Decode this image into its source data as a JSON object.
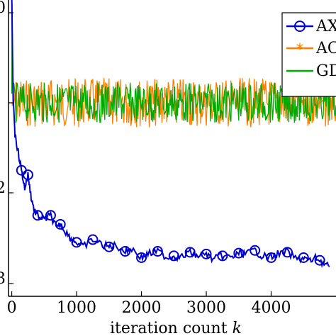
{
  "chart_data": {
    "type": "line",
    "xlabel_text": "iteration count ",
    "xlabel_var": "k",
    "xlim": [
      -50,
      5000
    ],
    "x_ticks": [
      0,
      1000,
      2000,
      3000,
      4000
    ],
    "x_tick_labels": [
      "0",
      "1000",
      "2000",
      "3000",
      "4000"
    ],
    "y_tick_labels_partial": [
      "0",
      "",
      "2",
      "3"
    ],
    "legend_placement": "top-right",
    "grid": false,
    "series": [
      {
        "name": "AX",
        "color": "#0000cc",
        "marker": "circle",
        "x": [
          0,
          20,
          50,
          100,
          150,
          200,
          250,
          300,
          350,
          400,
          500,
          600,
          700,
          750,
          800,
          900,
          1000,
          1100,
          1250,
          1400,
          1500,
          1600,
          1750,
          1850,
          2000,
          2100,
          2250,
          2400,
          2500,
          2600,
          2750,
          2850,
          3000,
          3100,
          3250,
          3400,
          3500,
          3600,
          3750,
          3850,
          4000,
          4100,
          4250,
          4400,
          4500,
          4600,
          4700,
          4800,
          4900
        ],
        "y": [
          -0.2,
          0.9,
          1.35,
          1.55,
          1.75,
          1.95,
          1.8,
          2.05,
          2.2,
          2.25,
          2.3,
          2.25,
          2.4,
          2.35,
          2.4,
          2.5,
          2.55,
          2.6,
          2.52,
          2.58,
          2.6,
          2.58,
          2.65,
          2.62,
          2.72,
          2.68,
          2.65,
          2.72,
          2.7,
          2.72,
          2.66,
          2.7,
          2.68,
          2.74,
          2.7,
          2.72,
          2.67,
          2.68,
          2.64,
          2.7,
          2.72,
          2.68,
          2.66,
          2.74,
          2.72,
          2.76,
          2.72,
          2.78,
          2.82
        ]
      },
      {
        "name": "AC",
        "color": "#ff8000",
        "marker": "asterisk",
        "center": 1.0,
        "spread": 0.55
      },
      {
        "name": "GD",
        "color": "#00aa00",
        "marker": "none",
        "center": 1.0,
        "spread": 0.45,
        "peak": -2.0
      }
    ]
  }
}
